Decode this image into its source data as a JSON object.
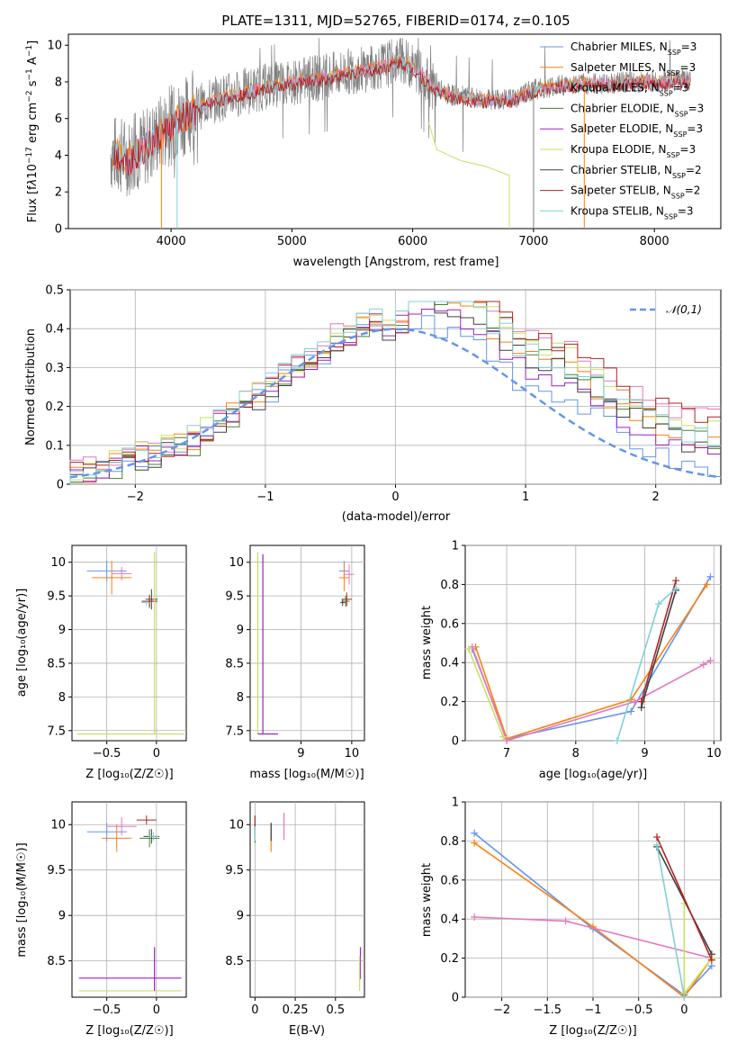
{
  "figure": {
    "title": "PLATE=1311, MJD=52765, FIBERID=0174, z=0.105"
  },
  "colors": [
    "#6495ed",
    "#ff7f0e",
    "#e377c2",
    "#4b7f2a",
    "#a020c0",
    "#c8e060",
    "#404040",
    "#b22222",
    "#80d0d8"
  ],
  "chart_data": [
    {
      "type": "line",
      "id": "spectrum",
      "title": "PLATE=1311, MJD=52765, FIBERID=0174, z=0.105",
      "xlabel": "wavelength [Angstrom, rest frame]",
      "ylabel": "Flux [f_λ 10⁻¹⁷ erg cm⁻² s⁻¹ A⁻¹]",
      "xlim": [
        3150,
        8550
      ],
      "ylim": [
        0,
        10.6
      ],
      "xticks": [
        4000,
        5000,
        6000,
        7000,
        8000
      ],
      "yticks": [
        0,
        2,
        4,
        6,
        8,
        10
      ],
      "legend_position": "upper right",
      "legend": [
        {
          "label": "Chabrier MILES, N",
          "sub": "SSP",
          "suffix": "=3"
        },
        {
          "label": "Salpeter MILES, N",
          "sub": "SSP",
          "suffix": "=3"
        },
        {
          "label": "Kroupa MILES, N",
          "sub": "SSP",
          "suffix": "=3"
        },
        {
          "label": "Chabrier ELODIE, N",
          "sub": "SSP",
          "suffix": "=3"
        },
        {
          "label": "Salpeter ELODIE, N",
          "sub": "SSP",
          "suffix": "=3"
        },
        {
          "label": "Kroupa ELODIE, N",
          "sub": "SSP",
          "suffix": "=3"
        },
        {
          "label": "Chabrier STELIB, N",
          "sub": "SSP",
          "suffix": "=2"
        },
        {
          "label": "Salpeter STELIB, N",
          "sub": "SSP",
          "suffix": "=2"
        },
        {
          "label": "Kroupa STELIB, N",
          "sub": "SSP",
          "suffix": "=3"
        }
      ],
      "continuum": {
        "x": [
          3500,
          3650,
          3800,
          3950,
          4100,
          4300,
          4500,
          4700,
          4900,
          5100,
          5300,
          5500,
          5700,
          5900,
          6050,
          6150,
          6300,
          6500,
          6700,
          6850,
          7000,
          7200,
          7400,
          7600,
          7800,
          8000,
          8200,
          8300
        ],
        "y": [
          4.1,
          3.9,
          4.5,
          5.4,
          6.1,
          6.9,
          7.3,
          7.6,
          7.9,
          8.1,
          8.3,
          8.6,
          8.8,
          9.2,
          8.6,
          7.8,
          7.3,
          7.1,
          7.0,
          7.1,
          7.6,
          7.8,
          7.9,
          7.9,
          8.0,
          8.0,
          8.1,
          8.0
        ]
      },
      "elodie_dropoff": {
        "x": [
          6130,
          6200,
          6400,
          6600,
          6800,
          6800
        ],
        "y": [
          5.8,
          4.3,
          3.7,
          3.4,
          2.9,
          0
        ]
      }
    },
    {
      "type": "histogram",
      "id": "residuals",
      "xlabel": "(data-model)/error",
      "ylabel": "Normed distribution",
      "xlim": [
        -2.5,
        2.5
      ],
      "ylim": [
        0,
        0.5
      ],
      "xticks": [
        -2,
        -1,
        0,
        1,
        2
      ],
      "yticks": [
        0.0,
        0.1,
        0.2,
        0.3,
        0.4,
        0.5
      ],
      "grid": true,
      "legend": "𝒩(0,1)",
      "bin_width": 0.1,
      "bins_start": -2.5,
      "series": [
        {
          "offset": 0.0,
          "values": [
            0.015,
            0.02,
            0.03,
            0.04,
            0.05,
            0.06,
            0.07,
            0.08,
            0.09,
            0.1,
            0.12,
            0.15,
            0.17,
            0.2,
            0.22,
            0.24,
            0.27,
            0.29,
            0.31,
            0.33,
            0.36,
            0.37,
            0.39,
            0.4,
            0.39,
            0.4,
            0.41,
            0.42,
            0.4,
            0.39,
            0.38,
            0.37,
            0.33,
            0.31,
            0.27,
            0.26,
            0.25,
            0.24,
            0.22,
            0.2,
            0.17,
            0.15,
            0.13,
            0.11,
            0.09,
            0.07,
            0.06,
            0.05,
            0.04,
            0.03
          ]
        }
      ]
    }
  ],
  "age_vs_Z": {
    "xlabel": "Z [log₁₀(Z/Z☉)]",
    "ylabel": "age  [log₁₀(age/yr)]",
    "xlim": [
      -0.85,
      0.3
    ],
    "ylim": [
      7.35,
      10.25
    ],
    "xticks": [
      -0.5,
      0.0
    ],
    "yticks": [
      7.5,
      8.0,
      8.5,
      9.0,
      9.5,
      10.0
    ]
  },
  "age_vs_mass": {
    "xlabel": "mass [log₁₀(M/M☉)]",
    "xlim": [
      8.0,
      10.25
    ],
    "ylim": [
      7.35,
      10.25
    ],
    "xticks": [
      9,
      10
    ]
  },
  "weight_vs_age": {
    "xlabel": "age  [log₁₀(age/yr)]",
    "ylabel": "mass weight",
    "xlim": [
      6.4,
      10.1
    ],
    "ylim": [
      0,
      1.0
    ],
    "xticks": [
      7,
      8,
      9,
      10
    ],
    "yticks": [
      0.0,
      0.2,
      0.4,
      0.6,
      0.8,
      1.0
    ]
  },
  "mass_vs_Z": {
    "xlabel": "Z [log₁₀(Z/Z☉)]",
    "ylabel": "mass [log₁₀(M/M☉)]",
    "xlim": [
      -0.85,
      0.3
    ],
    "ylim": [
      8.1,
      10.25
    ],
    "xticks": [
      -0.5,
      0.0
    ],
    "yticks": [
      8.5,
      9.0,
      9.5,
      10.0
    ]
  },
  "mass_vs_ebv": {
    "xlabel": "E(B-V)",
    "xlim": [
      -0.03,
      0.68
    ],
    "ylim": [
      8.1,
      10.25
    ],
    "xticks": [
      0.0,
      0.25,
      0.5
    ]
  },
  "weight_vs_Z": {
    "xlabel": "Z [log₁₀(Z/Z☉)]",
    "ylabel": "mass weight",
    "xlim": [
      -2.4,
      0.4
    ],
    "ylim": [
      0,
      1.0
    ],
    "xticks": [
      -2.0,
      -1.5,
      -1.0,
      -0.5,
      0.0
    ],
    "yticks": [
      0.0,
      0.2,
      0.4,
      0.6,
      0.8,
      1.0
    ]
  }
}
